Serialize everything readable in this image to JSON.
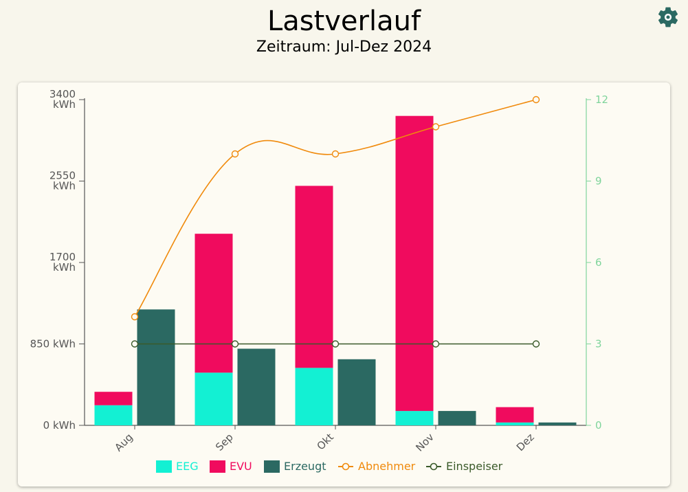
{
  "header": {
    "title": "Lastverlauf",
    "subtitle": "Zeitraum: Jul-Dez 2024",
    "settings_icon": "gear-icon"
  },
  "chart_data": {
    "type": "bar",
    "categories": [
      "Aug",
      "Sep",
      "Okt",
      "Nov",
      "Dez"
    ],
    "stacked_bars": [
      {
        "name": "EEG",
        "color": "#13f0d3",
        "values": [
          210,
          550,
          600,
          150,
          30
        ]
      },
      {
        "name": "EVU",
        "color": "#f00b5e",
        "values": [
          140,
          1450,
          1900,
          3080,
          160
        ]
      }
    ],
    "bars": [
      {
        "name": "Erzeugt",
        "color": "#2b6962",
        "values": [
          1210,
          800,
          690,
          150,
          30
        ]
      }
    ],
    "lines": [
      {
        "name": "Abnehmer",
        "color": "#f08a0c",
        "axis": "right",
        "values": [
          4,
          10,
          10,
          11,
          12
        ]
      },
      {
        "name": "Einspeiser",
        "color": "#3a5a2a",
        "axis": "right",
        "values": [
          3,
          3,
          3,
          3,
          3
        ]
      }
    ],
    "y_left": {
      "ylim": [
        0,
        3400
      ],
      "ticks": [
        {
          "value": 0,
          "lines": [
            "0 kWh"
          ]
        },
        {
          "value": 850,
          "lines": [
            "850 kWh"
          ]
        },
        {
          "value": 1700,
          "lines": [
            "1700",
            "kWh"
          ]
        },
        {
          "value": 2550,
          "lines": [
            "2550",
            "kWh"
          ]
        },
        {
          "value": 3400,
          "lines": [
            "3400",
            "kWh"
          ]
        }
      ],
      "color": "#555555"
    },
    "y_right": {
      "ylim": [
        0,
        12
      ],
      "ticks": [
        "0",
        "3",
        "6",
        "9",
        "12"
      ],
      "color": "#7fd49b"
    },
    "legend": [
      {
        "name": "EEG",
        "kind": "box",
        "color": "#13f0d3",
        "text_color": "#13f0d3"
      },
      {
        "name": "EVU",
        "kind": "box",
        "color": "#f00b5e",
        "text_color": "#f00b5e"
      },
      {
        "name": "Erzeugt",
        "kind": "box",
        "color": "#2b6962",
        "text_color": "#2b6962"
      },
      {
        "name": "Abnehmer",
        "kind": "line",
        "color": "#f08a0c",
        "text_color": "#f08a0c"
      },
      {
        "name": "Einspeiser",
        "kind": "line",
        "color": "#3a5a2a",
        "text_color": "#3a5a2a"
      }
    ],
    "legend_position": "bottom",
    "grid": false
  }
}
